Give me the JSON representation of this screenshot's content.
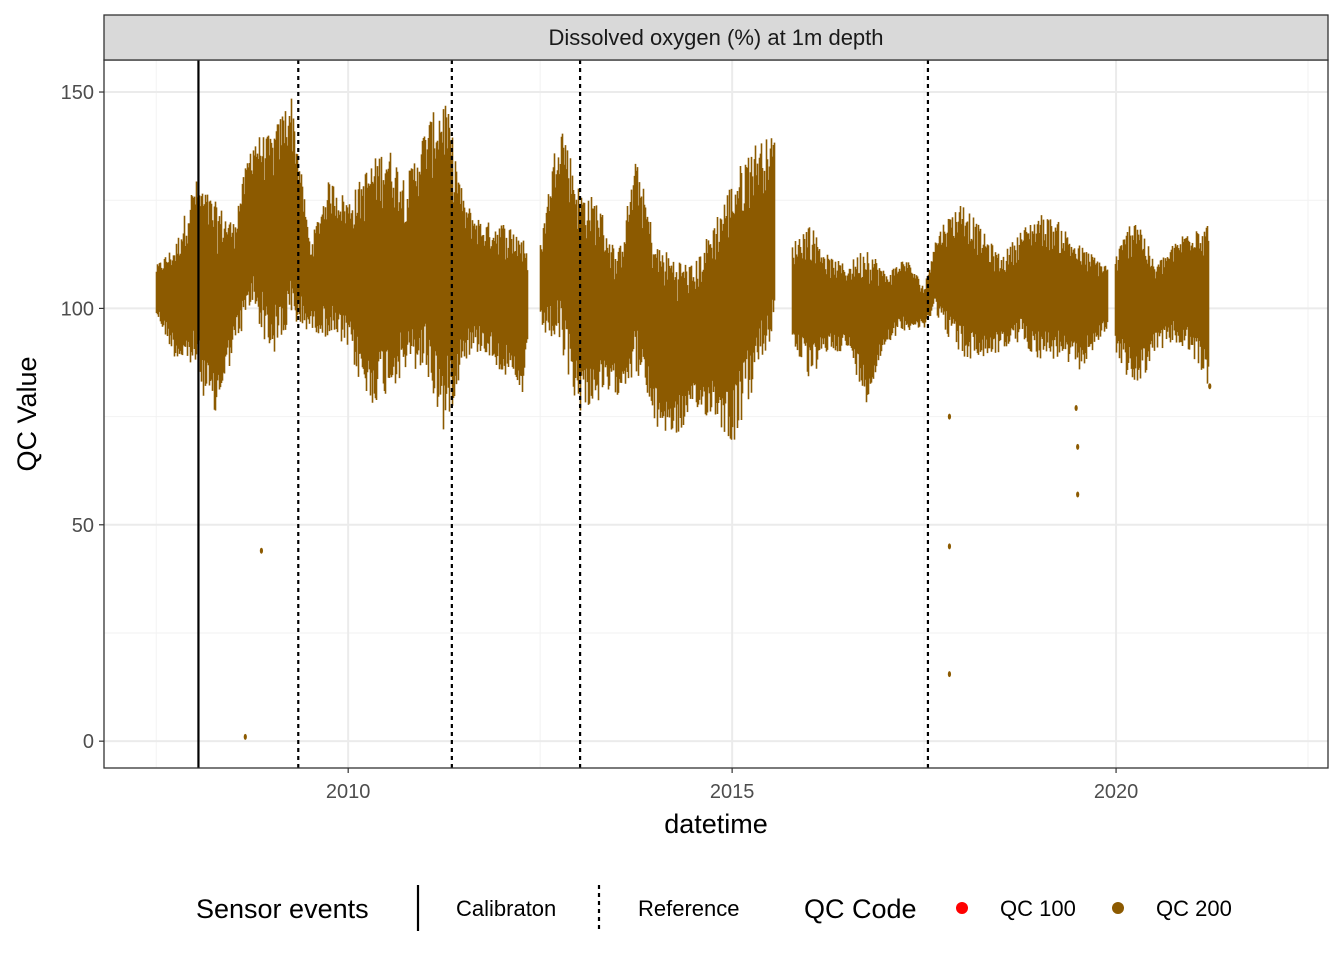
{
  "chart_data": {
    "type": "scatter",
    "strip_title": "Dissolved oxygen (%) at 1m depth",
    "xlabel": "datetime",
    "ylabel": "QC Value",
    "xlim": [
      2006.82,
      2022.76
    ],
    "ylim": [
      -6.2,
      157.4
    ],
    "x_ticks": [
      {
        "value": 2010,
        "label": "2010"
      },
      {
        "value": 2015,
        "label": "2015"
      },
      {
        "value": 2020,
        "label": "2020"
      }
    ],
    "y_ticks": [
      {
        "value": 0,
        "label": "0"
      },
      {
        "value": 50,
        "label": "50"
      },
      {
        "value": 100,
        "label": "100"
      },
      {
        "value": 150,
        "label": "150"
      }
    ],
    "grid": true,
    "series_color": "#8c5a00",
    "qc100_color": "#ff0000",
    "envelope_segments": [
      [
        [
          2007.5,
          98,
          110
        ],
        [
          2007.75,
          88,
          115
        ],
        [
          2008.0,
          85,
          130
        ],
        [
          2008.25,
          73,
          125
        ],
        [
          2008.5,
          90,
          120
        ],
        [
          2008.75,
          100,
          140
        ],
        [
          2009.0,
          88,
          140
        ],
        [
          2009.25,
          95,
          150
        ],
        [
          2009.5,
          95,
          115
        ],
        [
          2009.75,
          93,
          130
        ],
        [
          2010.0,
          90,
          125
        ],
        [
          2010.25,
          77,
          133
        ],
        [
          2010.5,
          80,
          138
        ],
        [
          2010.75,
          85,
          130
        ],
        [
          2011.0,
          85,
          142
        ],
        [
          2011.25,
          70,
          150
        ],
        [
          2011.5,
          88,
          125
        ],
        [
          2011.75,
          90,
          120
        ],
        [
          2012.0,
          85,
          120
        ],
        [
          2012.25,
          78,
          118
        ],
        [
          2012.33,
          88,
          112
        ]
      ],
      [
        [
          2012.5,
          95,
          115
        ],
        [
          2012.75,
          90,
          145
        ],
        [
          2013.0,
          76,
          128
        ],
        [
          2013.25,
          78,
          125
        ],
        [
          2013.5,
          80,
          112
        ],
        [
          2013.75,
          85,
          135
        ],
        [
          2014.0,
          72,
          115
        ],
        [
          2014.25,
          70,
          112
        ],
        [
          2014.5,
          75,
          110
        ],
        [
          2014.75,
          75,
          120
        ],
        [
          2015.0,
          68,
          130
        ],
        [
          2015.25,
          80,
          138
        ],
        [
          2015.55,
          95,
          140
        ]
      ],
      [
        [
          2015.78,
          92,
          115
        ],
        [
          2016.0,
          83,
          120
        ],
        [
          2016.25,
          90,
          112
        ],
        [
          2016.5,
          90,
          110
        ],
        [
          2016.75,
          78,
          115
        ],
        [
          2017.0,
          92,
          108
        ],
        [
          2017.25,
          95,
          112
        ],
        [
          2017.5,
          95,
          105
        ],
        [
          2017.62,
          100,
          115
        ],
        [
          2017.75,
          95,
          120
        ],
        [
          2018.0,
          88,
          125
        ],
        [
          2018.25,
          88,
          118
        ],
        [
          2018.5,
          90,
          112
        ],
        [
          2018.75,
          92,
          118
        ],
        [
          2019.0,
          88,
          122
        ],
        [
          2019.25,
          88,
          120
        ],
        [
          2019.5,
          85,
          115
        ],
        [
          2019.88,
          95,
          110
        ]
      ],
      [
        [
          2019.98,
          90,
          112
        ],
        [
          2020.25,
          80,
          123
        ],
        [
          2020.5,
          90,
          110
        ],
        [
          2020.75,
          92,
          115
        ],
        [
          2021.0,
          88,
          120
        ],
        [
          2021.2,
          82,
          120
        ]
      ]
    ],
    "outliers": [
      [
        2008.66,
        1
      ],
      [
        2008.87,
        44
      ],
      [
        2017.83,
        45
      ],
      [
        2017.83,
        15.5
      ],
      [
        2017.83,
        75
      ],
      [
        2019.5,
        57
      ],
      [
        2019.5,
        68
      ],
      [
        2019.48,
        77
      ],
      [
        2021.22,
        82
      ]
    ],
    "sensor_events": [
      {
        "type": "Calibraton",
        "x": 2008.05,
        "style": "solid"
      },
      {
        "type": "Reference",
        "x": 2009.35,
        "style": "dotted"
      },
      {
        "type": "Reference",
        "x": 2011.35,
        "style": "dotted"
      },
      {
        "type": "Reference",
        "x": 2013.02,
        "style": "dotted"
      },
      {
        "type": "Reference",
        "x": 2017.55,
        "style": "dotted"
      }
    ],
    "legend": {
      "placement": "bottom",
      "sensor_title": "Sensor events",
      "sensor_items": [
        "Calibraton",
        "Reference"
      ],
      "qc_title": "QC Code",
      "qc_items": [
        "QC 100",
        "QC 200"
      ]
    }
  }
}
